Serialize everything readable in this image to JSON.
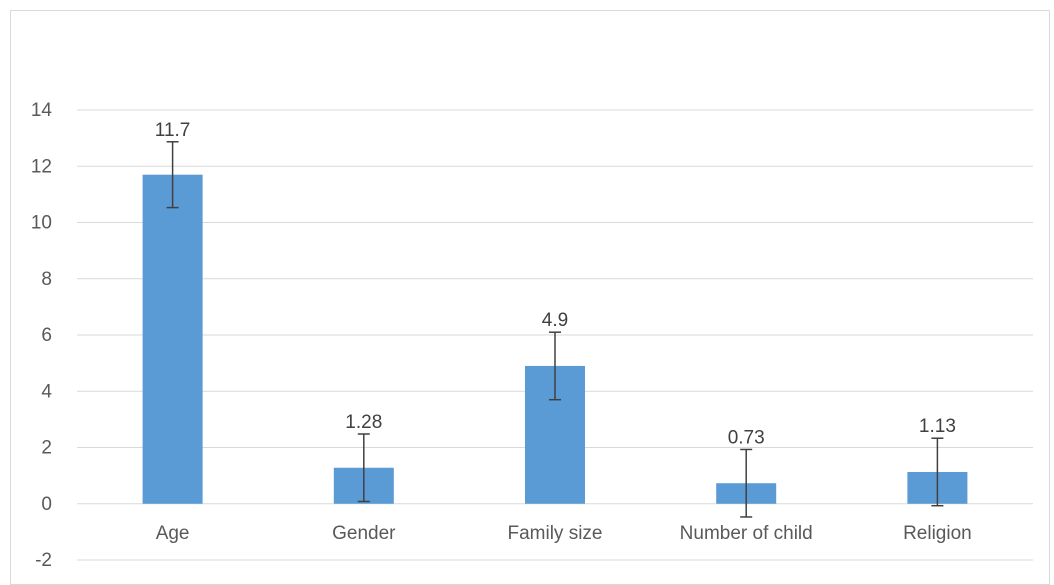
{
  "colors": {
    "bar": "#5b9bd5",
    "grid": "#d9d9d9",
    "error_bar": "#404040"
  },
  "chart_data": {
    "type": "bar",
    "title": "",
    "xlabel": "",
    "ylabel": "",
    "categories": [
      "Age",
      "Gender",
      "Family size",
      "Number of child",
      "Religion"
    ],
    "values": [
      11.7,
      1.28,
      4.9,
      0.73,
      1.13
    ],
    "data_labels": [
      "11.7",
      "1.28",
      "4.9",
      "0.73",
      "1.13"
    ],
    "error_margin": [
      1.17,
      1.2,
      1.2,
      1.2,
      1.2
    ],
    "ylim": [
      -2,
      14
    ],
    "yticks": [
      14,
      12,
      10,
      8,
      6,
      4,
      2,
      0,
      -2
    ],
    "grid": true,
    "legend": "none"
  }
}
